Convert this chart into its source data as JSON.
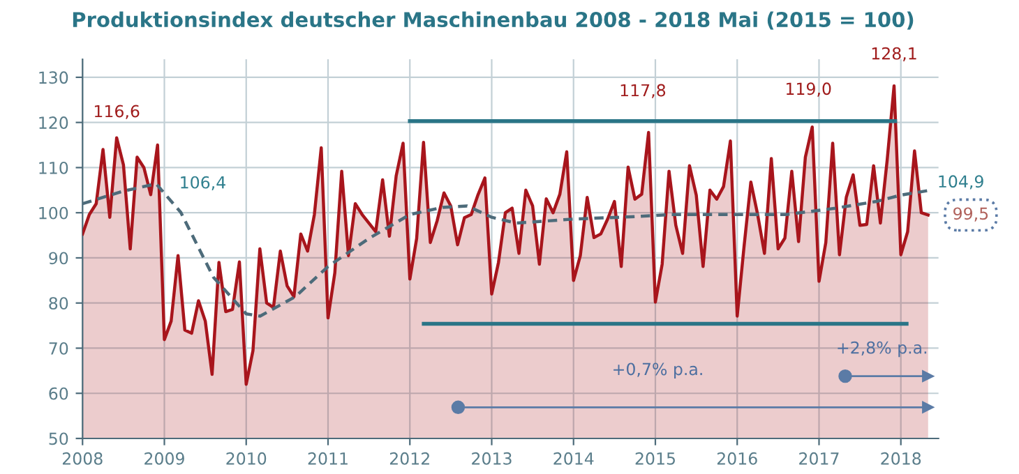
{
  "chart_data": {
    "type": "area",
    "title": "Produktionsindex deutscher Maschinenbau 2008 - 2018 Mai (2015 = 100)",
    "series": [
      {
        "color": "#a8151c",
        "x": [
          2008.0,
          2008.083,
          2008.167,
          2008.25,
          2008.333,
          2008.417,
          2008.5,
          2008.583,
          2008.667,
          2008.75,
          2008.833,
          2008.917,
          2009.0,
          2009.083,
          2009.167,
          2009.25,
          2009.333,
          2009.417,
          2009.5,
          2009.583,
          2009.667,
          2009.75,
          2009.833,
          2009.917,
          2010.0,
          2010.083,
          2010.167,
          2010.25,
          2010.333,
          2010.417,
          2010.5,
          2010.583,
          2010.667,
          2010.75,
          2010.833,
          2010.917,
          2011.0,
          2011.083,
          2011.167,
          2011.25,
          2011.333,
          2011.417,
          2011.5,
          2011.583,
          2011.667,
          2011.75,
          2011.833,
          2011.917,
          2012.0,
          2012.083,
          2012.167,
          2012.25,
          2012.333,
          2012.417,
          2012.5,
          2012.583,
          2012.667,
          2012.75,
          2012.833,
          2012.917,
          2013.0,
          2013.083,
          2013.167,
          2013.25,
          2013.333,
          2013.417,
          2013.5,
          2013.583,
          2013.667,
          2013.75,
          2013.833,
          2013.917,
          2014.0,
          2014.083,
          2014.167,
          2014.25,
          2014.333,
          2014.417,
          2014.5,
          2014.583,
          2014.667,
          2014.75,
          2014.833,
          2014.917,
          2015.0,
          2015.083,
          2015.167,
          2015.25,
          2015.333,
          2015.417,
          2015.5,
          2015.583,
          2015.667,
          2015.75,
          2015.833,
          2015.917,
          2016.0,
          2016.083,
          2016.167,
          2016.25,
          2016.333,
          2016.417,
          2016.5,
          2016.583,
          2016.667,
          2016.75,
          2016.833,
          2016.917,
          2017.0,
          2017.083,
          2017.167,
          2017.25,
          2017.333,
          2017.417,
          2017.5,
          2017.583,
          2017.667,
          2017.75,
          2017.833,
          2017.917,
          2018.0,
          2018.083,
          2018.167,
          2018.25,
          2018.333
        ],
        "values": [
          95.3,
          99.6,
          102,
          114,
          99,
          116.6,
          110.6,
          92,
          112.3,
          110,
          104,
          115,
          71.9,
          76,
          90.5,
          74,
          73.3,
          80.5,
          76,
          64.2,
          89,
          78.1,
          78.6,
          89.1,
          62,
          69.5,
          92,
          80,
          79,
          91.5,
          83.8,
          81.4,
          95.3,
          91.5,
          99.6,
          114.4,
          76.7,
          86.7,
          109.2,
          90.5,
          102,
          99.6,
          97.7,
          95.8,
          107.3,
          94.8,
          108.2,
          115.4,
          85.3,
          94.3,
          115.6,
          93.4,
          98.2,
          104.4,
          101.5,
          92.9,
          98.9,
          99.6,
          104,
          107.7,
          82,
          89,
          100,
          101,
          91,
          105,
          101.5,
          88.6,
          103.1,
          100,
          104.1,
          113.5,
          85,
          90.5,
          103.4,
          94.5,
          95.3,
          98.6,
          102.5,
          88.1,
          110.1,
          103,
          104.1,
          117.8,
          80.2,
          88.6,
          109.2,
          97.2,
          91,
          110.4,
          103.9,
          88.1,
          105,
          103,
          105.8,
          115.9,
          77.1,
          92.4,
          106.8,
          99.6,
          91,
          112,
          92,
          94.4,
          109.2,
          93.6,
          112.3,
          119.0,
          84.8,
          93.4,
          115.4,
          90.7,
          103.4,
          108.4,
          97.2,
          97.4,
          110.4,
          97.7,
          111.7,
          128.1,
          90.7,
          95.8,
          113.7,
          100,
          99.5
        ]
      },
      {
        "type": "line",
        "color": "#4d6b7a",
        "line_style": "dashed",
        "x": [
          2008.0,
          2008.5,
          2008.9,
          2009.2,
          2009.6,
          2010.0,
          2010.17,
          2010.6,
          2011.0,
          2011.5,
          2012.0,
          2012.4,
          2012.7,
          2013.0,
          2013.3,
          2014.0,
          2014.7,
          2015.2,
          2016.0,
          2016.6,
          2017.2,
          2017.7,
          2018.0,
          2018.33
        ],
        "values": [
          102,
          104.8,
          106.4,
          100.1,
          85.7,
          77.6,
          77.1,
          81.4,
          88.1,
          94.3,
          99.6,
          101.2,
          101.5,
          99,
          97.7,
          98.6,
          99.1,
          99.6,
          99.6,
          99.6,
          101,
          102.5,
          103.9,
          104.9
        ]
      },
      {
        "type": "line",
        "color": "#2a7587",
        "x": [
          2012.0,
          2017.93
        ],
        "values": [
          120.3,
          120.3
        ]
      },
      {
        "type": "line",
        "color": "#2a7587",
        "x": [
          2012.17,
          2018.07
        ],
        "values": [
          75.4,
          75.4
        ]
      },
      {
        "type": "line",
        "color": "#5b7ba6",
        "marker": "circle",
        "x": [
          2012.59,
          2018.33
        ],
        "values": [
          56.9,
          56.9
        ]
      },
      {
        "type": "line",
        "color": "#5b7ba6",
        "marker": "circle",
        "x": [
          2017.32,
          2018.33
        ],
        "values": [
          63.8,
          63.8
        ]
      }
    ],
    "xlim": [
      2008,
      2018.46
    ],
    "xticks": [
      2008,
      2009,
      2010,
      2011,
      2012,
      2013,
      2014,
      2015,
      2016,
      2017,
      2018
    ],
    "ylim": [
      50,
      134
    ],
    "yticks": [
      50,
      60,
      70,
      80,
      90,
      100,
      110,
      120,
      130
    ],
    "grid": true,
    "annotations": [
      {
        "text": "116,6",
        "x": 2008.417,
        "y": 116.6
      },
      {
        "text": "106,4",
        "x": 2008.9,
        "y": 106.4
      },
      {
        "text": "117,8",
        "x": 2014.917,
        "y": 117.8
      },
      {
        "text": "119,0",
        "x": 2016.917,
        "y": 119.0
      },
      {
        "text": "128,1",
        "x": 2017.917,
        "y": 128.1
      },
      {
        "text": "104,9",
        "x": 2018.33,
        "y": 104.9
      },
      {
        "text": "99,5",
        "x": 2018.333,
        "y": 99.5
      },
      {
        "text": "+0,7% p.a.",
        "x": 2015.03,
        "y": 56.9
      },
      {
        "text": "+2,8% p.a.",
        "x": 2017.77,
        "y": 63.8
      }
    ]
  }
}
